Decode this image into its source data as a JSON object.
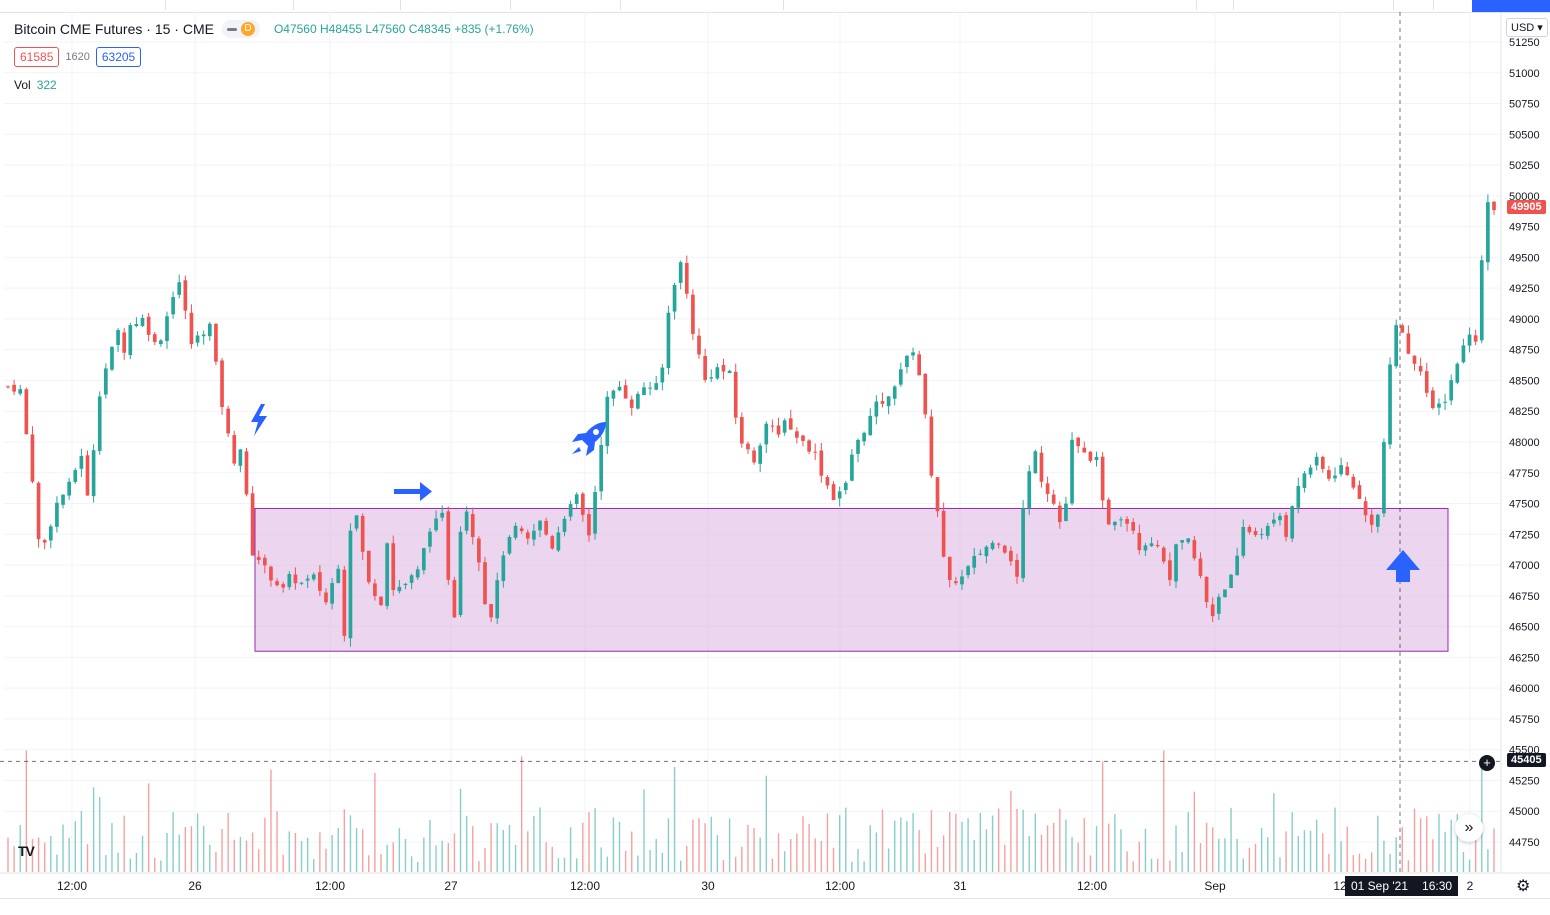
{
  "chart_header": {
    "symbol_title": "Bitcoin CME Futures · 15 · CME",
    "flag_letter": "D",
    "ohlc": {
      "o_label": "O",
      "open": "47560",
      "h_label": "H",
      "high": "48455",
      "l_label": "L",
      "low": "47560",
      "c_label": "C",
      "close": "48345",
      "change": "+835 (+1.76%)"
    },
    "indicator_values": [
      "61585",
      "1620",
      "63205"
    ],
    "volume_label": "Vol",
    "volume_value": "322"
  },
  "currency_selector": "USD",
  "price_axis": {
    "last_price_tag": "49905",
    "crosshair_price_tag": "45405",
    "colors": {
      "up": "#26a69a",
      "down": "#ef5350",
      "last_price_bg": "#ef5350",
      "crosshair_bg": "#131722",
      "zone_fill": "#e1bee7",
      "zone_border": "#9c27b0",
      "annotation": "#2962ff"
    }
  },
  "crosshair_time": {
    "date": "01 Sep '21",
    "time": "16:30"
  },
  "icons": [
    "plus-circle-icon",
    "double-chevron-right-icon",
    "tradingview-logo-icon",
    "gear-icon",
    "lightning-icon",
    "rocket-icon",
    "arrow-right-icon",
    "arrow-up-icon"
  ],
  "chart_data": {
    "type": "candlestick",
    "y_ticks": [
      "51250",
      "51000",
      "50750",
      "50500",
      "50250",
      "50000",
      "49750",
      "49500",
      "49250",
      "49000",
      "48750",
      "48500",
      "48250",
      "48000",
      "47750",
      "47500",
      "47250",
      "47000",
      "46750",
      "46500",
      "46250",
      "46000",
      "45750",
      "45500",
      "45250",
      "45000",
      "44750"
    ],
    "x_ticks": [
      "12:00",
      "26",
      "12:00",
      "27",
      "12:00",
      "30",
      "12:00",
      "31",
      "12:00",
      "Sep",
      "12",
      "2"
    ],
    "ylim": [
      44600,
      51400
    ],
    "shaded_zone": {
      "price_top": 47460,
      "price_bottom": 46300
    },
    "close_path": [
      [
        0,
        48450
      ],
      [
        2,
        48420
      ],
      [
        4,
        47700
      ],
      [
        5,
        47200
      ],
      [
        6,
        47180
      ],
      [
        8,
        47500
      ],
      [
        10,
        47650
      ],
      [
        12,
        47900
      ],
      [
        13,
        47550
      ],
      [
        14,
        47950
      ],
      [
        15,
        48400
      ],
      [
        16,
        48600
      ],
      [
        18,
        48900
      ],
      [
        19,
        48750
      ],
      [
        20,
        48950
      ],
      [
        22,
        49000
      ],
      [
        24,
        48800
      ],
      [
        25,
        48850
      ],
      [
        27,
        49200
      ],
      [
        28,
        49300
      ],
      [
        29,
        49050
      ],
      [
        30,
        48800
      ],
      [
        33,
        48950
      ],
      [
        35,
        48300
      ],
      [
        36,
        48050
      ],
      [
        37,
        47850
      ],
      [
        38,
        47950
      ],
      [
        39,
        47550
      ],
      [
        40,
        47100
      ],
      [
        41,
        47050
      ],
      [
        43,
        46900
      ],
      [
        45,
        46800
      ],
      [
        46,
        46900
      ],
      [
        48,
        46850
      ],
      [
        50,
        46900
      ],
      [
        52,
        46700
      ],
      [
        54,
        47000
      ],
      [
        55,
        46450
      ],
      [
        56,
        47300
      ],
      [
        57,
        47400
      ],
      [
        58,
        47100
      ],
      [
        59,
        46850
      ],
      [
        61,
        46700
      ],
      [
        62,
        47200
      ],
      [
        63,
        46800
      ],
      [
        65,
        46850
      ],
      [
        67,
        46950
      ],
      [
        69,
        47300
      ],
      [
        71,
        47400
      ],
      [
        72,
        46900
      ],
      [
        73,
        46600
      ],
      [
        74,
        47300
      ],
      [
        75,
        47450
      ],
      [
        77,
        47050
      ],
      [
        78,
        46700
      ],
      [
        79,
        46600
      ],
      [
        81,
        47100
      ],
      [
        83,
        47300
      ],
      [
        85,
        47200
      ],
      [
        87,
        47350
      ],
      [
        89,
        47150
      ],
      [
        91,
        47400
      ],
      [
        93,
        47550
      ],
      [
        94,
        47400
      ],
      [
        95,
        47250
      ],
      [
        96,
        47600
      ],
      [
        97,
        48000
      ],
      [
        98,
        48350
      ],
      [
        100,
        48450
      ],
      [
        102,
        48300
      ],
      [
        104,
        48450
      ],
      [
        106,
        48450
      ],
      [
        107,
        48600
      ],
      [
        108,
        49050
      ],
      [
        109,
        49300
      ],
      [
        110,
        49450
      ],
      [
        111,
        49200
      ],
      [
        112,
        48900
      ],
      [
        113,
        48700
      ],
      [
        114,
        48500
      ],
      [
        116,
        48600
      ],
      [
        118,
        48550
      ],
      [
        119,
        48200
      ],
      [
        120,
        48000
      ],
      [
        122,
        47850
      ],
      [
        124,
        48150
      ],
      [
        126,
        48050
      ],
      [
        127,
        48200
      ],
      [
        128,
        48100
      ],
      [
        130,
        48000
      ],
      [
        132,
        47900
      ],
      [
        133,
        47750
      ],
      [
        135,
        47550
      ],
      [
        137,
        47650
      ],
      [
        138,
        47900
      ],
      [
        140,
        48100
      ],
      [
        142,
        48300
      ],
      [
        144,
        48350
      ],
      [
        146,
        48600
      ],
      [
        148,
        48750
      ],
      [
        149,
        48550
      ],
      [
        150,
        48200
      ],
      [
        151,
        47750
      ],
      [
        152,
        47450
      ],
      [
        153,
        47050
      ],
      [
        154,
        46850
      ],
      [
        156,
        46900
      ],
      [
        158,
        47050
      ],
      [
        160,
        47150
      ],
      [
        162,
        47200
      ],
      [
        164,
        47050
      ],
      [
        165,
        46900
      ],
      [
        166,
        47450
      ],
      [
        167,
        47750
      ],
      [
        168,
        47950
      ],
      [
        169,
        47700
      ],
      [
        171,
        47500
      ],
      [
        172,
        47350
      ],
      [
        173,
        47500
      ],
      [
        174,
        48000
      ],
      [
        176,
        47900
      ],
      [
        178,
        47850
      ],
      [
        179,
        47500
      ],
      [
        180,
        47350
      ],
      [
        182,
        47400
      ],
      [
        184,
        47300
      ],
      [
        185,
        47150
      ],
      [
        187,
        47200
      ],
      [
        189,
        47050
      ],
      [
        190,
        46850
      ],
      [
        191,
        47150
      ],
      [
        193,
        47200
      ],
      [
        195,
        46900
      ],
      [
        196,
        46700
      ],
      [
        197,
        46600
      ],
      [
        198,
        46750
      ],
      [
        200,
        46900
      ],
      [
        201,
        47050
      ],
      [
        202,
        47300
      ],
      [
        204,
        47250
      ],
      [
        206,
        47300
      ],
      [
        208,
        47400
      ],
      [
        209,
        47250
      ],
      [
        210,
        47500
      ],
      [
        212,
        47750
      ],
      [
        214,
        47850
      ],
      [
        216,
        47700
      ],
      [
        218,
        47800
      ],
      [
        220,
        47650
      ],
      [
        222,
        47400
      ],
      [
        223,
        47350
      ],
      [
        224,
        47400
      ],
      [
        225,
        48000
      ],
      [
        226,
        48600
      ],
      [
        227,
        48950
      ],
      [
        228,
        48900
      ],
      [
        229,
        48700
      ],
      [
        231,
        48600
      ],
      [
        232,
        48400
      ],
      [
        233,
        48250
      ],
      [
        235,
        48350
      ],
      [
        237,
        48650
      ],
      [
        239,
        48900
      ],
      [
        240,
        48800
      ],
      [
        241,
        49500
      ],
      [
        242,
        49950
      ],
      [
        243,
        49905
      ]
    ]
  }
}
